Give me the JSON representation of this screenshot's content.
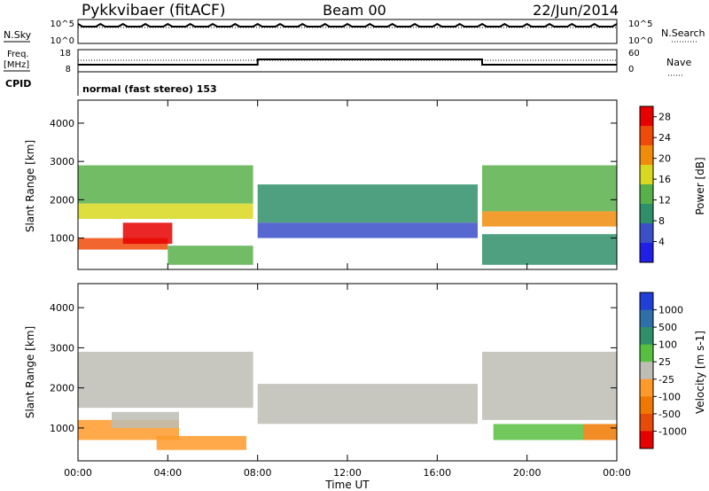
{
  "header": {
    "station": "Pykkvibaer (fitACF)",
    "beam": "Beam 00",
    "date": "22/Jun/2014"
  },
  "noise_panel": {
    "left_label": "N.Sky",
    "left_ticks": [
      "10^5",
      "10^0"
    ],
    "right_label": "N.Search",
    "right_ticks": [
      "10^5",
      "10^0"
    ]
  },
  "freq_panel": {
    "left_label_1": "Freq.",
    "left_label_2": "[MHz]",
    "left_ticks": [
      "18",
      "8"
    ],
    "right_label": "Nave",
    "right_ticks": [
      "60",
      "0"
    ]
  },
  "cpid": {
    "label": "CPID",
    "text": "normal (fast stereo) 153"
  },
  "colors": {
    "power_scale": [
      "#1f1fe6",
      "#3a4fc8",
      "#2f8f6a",
      "#58b04a",
      "#d8d820",
      "#f08c0a",
      "#f04a0a",
      "#e60000"
    ],
    "velocity_scale": [
      "#1f3fd6",
      "#2f6fa8",
      "#2f8f6a",
      "#58c040",
      "#bdbdb5",
      "#ff9a2a",
      "#f07800",
      "#e84a0a",
      "#e60000"
    ],
    "ground_scatter": "#bdbdb5"
  },
  "chart_data": [
    {
      "type": "heatmap",
      "title": "",
      "xlabel": "Time UT",
      "ylabel": "Slant Range [km]",
      "x_range_hours": [
        0,
        24
      ],
      "y_range_km": [
        180,
        4600
      ],
      "x_ticks": [
        "00:00",
        "04:00",
        "08:00",
        "12:00",
        "16:00",
        "20:00",
        "00:00"
      ],
      "y_ticks": [
        "1000",
        "2000",
        "3000",
        "4000"
      ],
      "colorbar_label": "Power [dB]",
      "colorbar_ticks": [
        "4",
        "8",
        "12",
        "16",
        "20",
        "24",
        "28"
      ],
      "colorbar_range": [
        0,
        30
      ],
      "regions": [
        {
          "t": [
            0.0,
            7.8
          ],
          "r": [
            1900,
            2900
          ],
          "level": 12
        },
        {
          "t": [
            0.0,
            7.8
          ],
          "r": [
            1500,
            1900
          ],
          "level": 18
        },
        {
          "t": [
            0.0,
            4.0
          ],
          "r": [
            700,
            1000
          ],
          "level": 24
        },
        {
          "t": [
            2.0,
            4.2
          ],
          "r": [
            850,
            1400
          ],
          "level": 28
        },
        {
          "t": [
            4.0,
            7.8
          ],
          "r": [
            300,
            800
          ],
          "level": 12
        },
        {
          "t": [
            8.0,
            17.8
          ],
          "r": [
            1400,
            2400
          ],
          "level": 8
        },
        {
          "t": [
            8.0,
            17.8
          ],
          "r": [
            1000,
            1400
          ],
          "level": 4
        },
        {
          "t": [
            18.0,
            24.0
          ],
          "r": [
            1300,
            1700
          ],
          "level": 22
        },
        {
          "t": [
            18.0,
            24.0
          ],
          "r": [
            1700,
            2900
          ],
          "level": 12
        },
        {
          "t": [
            18.0,
            24.0
          ],
          "r": [
            300,
            1100
          ],
          "level": 8
        }
      ]
    },
    {
      "type": "heatmap",
      "title": "",
      "xlabel": "Time UT",
      "ylabel": "Slant Range [km]",
      "x_range_hours": [
        0,
        24
      ],
      "y_range_km": [
        180,
        4600
      ],
      "x_ticks": [
        "00:00",
        "04:00",
        "08:00",
        "12:00",
        "16:00",
        "20:00",
        "00:00"
      ],
      "y_ticks": [
        "1000",
        "2000",
        "3000",
        "4000"
      ],
      "colorbar_label": "Velocity [m s-1]",
      "colorbar_ticks": [
        "1000",
        "500",
        "100",
        "25",
        "-25",
        "-100",
        "-500",
        "-1000"
      ],
      "colorbar_range": [
        -1200,
        1200
      ],
      "regions": [
        {
          "t": [
            0.0,
            7.8
          ],
          "r": [
            1500,
            2900
          ],
          "value": 0
        },
        {
          "t": [
            0.0,
            4.5
          ],
          "r": [
            700,
            1200
          ],
          "value": -300
        },
        {
          "t": [
            1.5,
            4.5
          ],
          "r": [
            1000,
            1400
          ],
          "value": 80
        },
        {
          "t": [
            3.5,
            7.5
          ],
          "r": [
            450,
            800
          ],
          "value": -150
        },
        {
          "t": [
            8.0,
            17.8
          ],
          "r": [
            1100,
            2100
          ],
          "value": 0
        },
        {
          "t": [
            18.0,
            24.0
          ],
          "r": [
            1200,
            2900
          ],
          "value": 0
        },
        {
          "t": [
            18.5,
            22.5
          ],
          "r": [
            700,
            1100
          ],
          "value": 300
        },
        {
          "t": [
            22.5,
            24.0
          ],
          "r": [
            700,
            1100
          ],
          "value": -400
        }
      ]
    }
  ]
}
